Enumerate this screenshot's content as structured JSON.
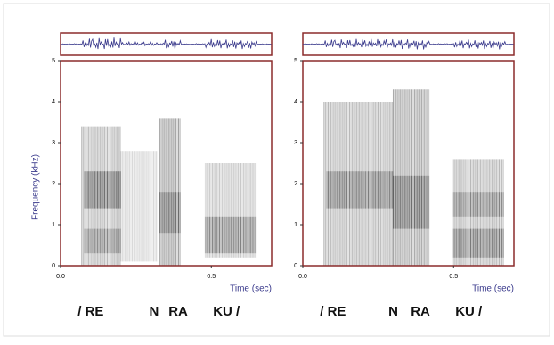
{
  "chart_data": [
    {
      "type": "spectrogram",
      "ylabel": "Frequency (kHz)",
      "xlabel": "Time (sec)",
      "xlim": [
        0,
        0.7
      ],
      "xticks": [
        {
          "value": 0,
          "label": "0.0"
        },
        0.5
      ],
      "ylim": [
        0,
        5
      ],
      "yticks": [
        0,
        1,
        2,
        3,
        4,
        5
      ],
      "syllables": [
        "/ RE",
        "N",
        "RA",
        "KU /"
      ],
      "color": "#3a3a8c"
    },
    {
      "type": "spectrogram",
      "xlabel": "Time (sec)",
      "xlim": [
        0,
        0.7
      ],
      "xticks": [
        {
          "value": 0,
          "label": "0.0"
        },
        0.5
      ],
      "ylim": [
        0,
        5
      ],
      "yticks": [
        0,
        1,
        2,
        3,
        4,
        5
      ],
      "syllables": [
        "/ RE",
        "N",
        "RA",
        "KU /"
      ],
      "color": "#3a3a8c"
    }
  ]
}
